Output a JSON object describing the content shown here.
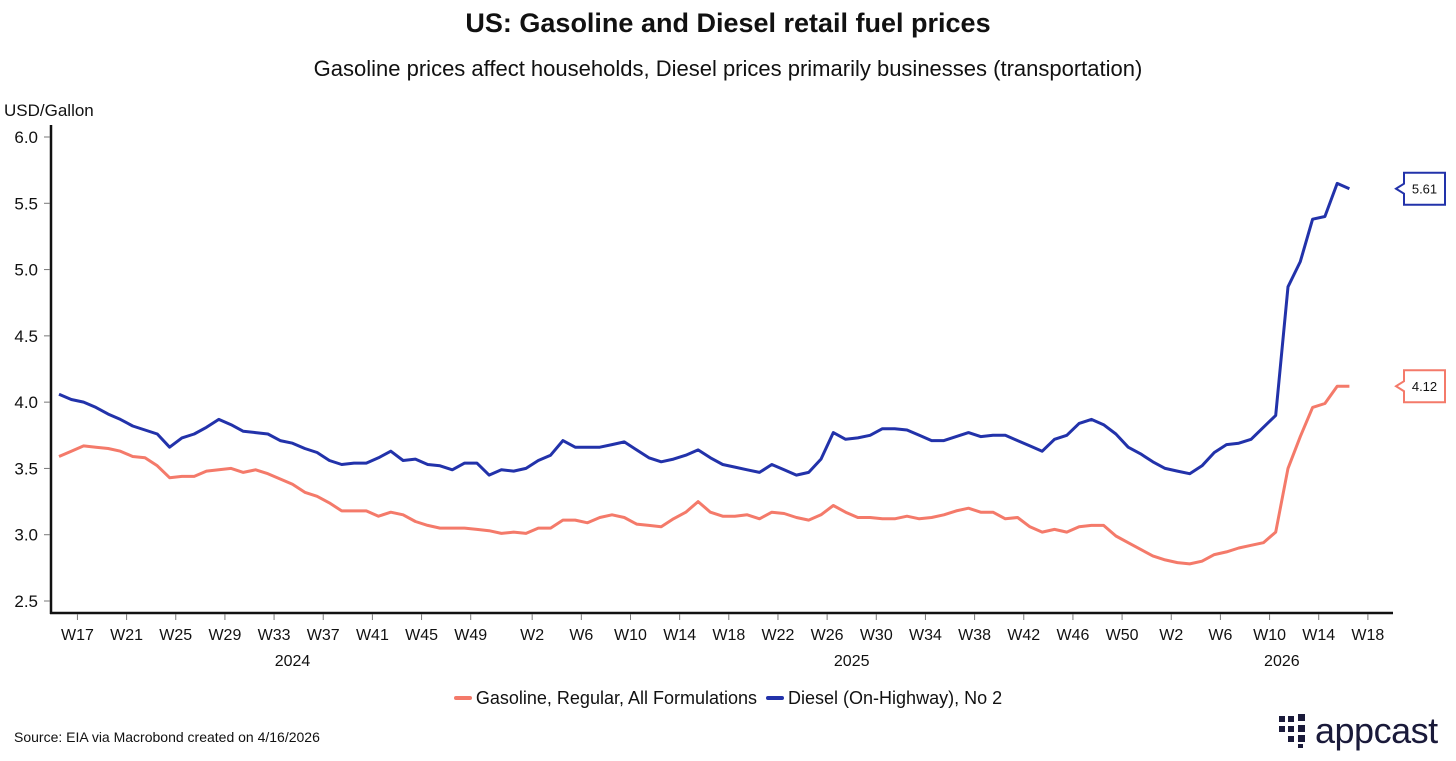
{
  "title": "US: Gasoline and Diesel retail fuel prices",
  "subtitle": "Gasoline prices affect households, Diesel prices primarily businesses (transportation)",
  "source": "Source: EIA via Macrobond created on 4/16/2026",
  "logo_text": "appcast",
  "chart_data": {
    "type": "line",
    "title": "US: Gasoline and Diesel retail fuel prices",
    "ylabel": "USD/Gallon",
    "xlabel": "",
    "ylim": [
      2.5,
      6.0
    ],
    "yticks": [
      "2.5",
      "3.0",
      "3.5",
      "4.0",
      "4.5",
      "5.0",
      "5.5",
      "6.0"
    ],
    "x_unit": "weekly observations, index 0 = first week shown (mid-April 2024)",
    "xticks": [
      {
        "pos": 1.5,
        "label": "W17"
      },
      {
        "pos": 5.5,
        "label": "W21"
      },
      {
        "pos": 9.5,
        "label": "W25"
      },
      {
        "pos": 13.5,
        "label": "W29"
      },
      {
        "pos": 17.5,
        "label": "W33"
      },
      {
        "pos": 21.5,
        "label": "W37"
      },
      {
        "pos": 25.5,
        "label": "W41"
      },
      {
        "pos": 29.5,
        "label": "W45"
      },
      {
        "pos": 33.5,
        "label": "W49"
      },
      {
        "pos": 38.5,
        "label": "W2"
      },
      {
        "pos": 42.5,
        "label": "W6"
      },
      {
        "pos": 46.5,
        "label": "W10"
      },
      {
        "pos": 50.5,
        "label": "W14"
      },
      {
        "pos": 54.5,
        "label": "W18"
      },
      {
        "pos": 58.5,
        "label": "W22"
      },
      {
        "pos": 62.5,
        "label": "W26"
      },
      {
        "pos": 66.5,
        "label": "W30"
      },
      {
        "pos": 70.5,
        "label": "W34"
      },
      {
        "pos": 74.5,
        "label": "W38"
      },
      {
        "pos": 78.5,
        "label": "W42"
      },
      {
        "pos": 82.5,
        "label": "W46"
      },
      {
        "pos": 86.5,
        "label": "W50"
      },
      {
        "pos": 90.5,
        "label": "W2"
      },
      {
        "pos": 94.5,
        "label": "W6"
      },
      {
        "pos": 98.5,
        "label": "W10"
      },
      {
        "pos": 102.5,
        "label": "W14"
      },
      {
        "pos": 106.5,
        "label": "W18"
      }
    ],
    "years": [
      {
        "pos": 19,
        "label": "2024"
      },
      {
        "pos": 64.5,
        "label": "2025"
      },
      {
        "pos": 99.5,
        "label": "2026"
      }
    ],
    "legend_position": "bottom-center",
    "grid": false,
    "series": [
      {
        "name": "Gasoline, Regular, All Formulations",
        "color": "#F47A6A",
        "last_label": "4.12",
        "values": [
          3.59,
          3.63,
          3.67,
          3.66,
          3.65,
          3.63,
          3.59,
          3.58,
          3.52,
          3.43,
          3.44,
          3.44,
          3.48,
          3.49,
          3.5,
          3.47,
          3.49,
          3.46,
          3.42,
          3.38,
          3.32,
          3.29,
          3.24,
          3.18,
          3.18,
          3.18,
          3.14,
          3.17,
          3.15,
          3.1,
          3.07,
          3.05,
          3.05,
          3.05,
          3.04,
          3.03,
          3.01,
          3.02,
          3.01,
          3.05,
          3.05,
          3.11,
          3.11,
          3.09,
          3.13,
          3.15,
          3.13,
          3.08,
          3.07,
          3.06,
          3.12,
          3.17,
          3.25,
          3.17,
          3.14,
          3.14,
          3.15,
          3.12,
          3.17,
          3.16,
          3.13,
          3.11,
          3.15,
          3.22,
          3.17,
          3.13,
          3.13,
          3.12,
          3.12,
          3.14,
          3.12,
          3.13,
          3.15,
          3.18,
          3.2,
          3.17,
          3.17,
          3.12,
          3.13,
          3.06,
          3.02,
          3.04,
          3.02,
          3.06,
          3.07,
          3.07,
          2.99,
          2.94,
          2.89,
          2.84,
          2.81,
          2.79,
          2.78,
          2.8,
          2.85,
          2.87,
          2.9,
          2.92,
          2.94,
          3.02,
          3.5,
          3.74,
          3.96,
          3.99,
          4.12,
          4.12
        ]
      },
      {
        "name": "Diesel (On-Highway), No 2",
        "color": "#2232AA",
        "last_label": "5.61",
        "values": [
          4.06,
          4.02,
          4.0,
          3.96,
          3.91,
          3.87,
          3.82,
          3.79,
          3.76,
          3.66,
          3.73,
          3.76,
          3.81,
          3.87,
          3.83,
          3.78,
          3.77,
          3.76,
          3.71,
          3.69,
          3.65,
          3.62,
          3.56,
          3.53,
          3.54,
          3.54,
          3.58,
          3.63,
          3.56,
          3.57,
          3.53,
          3.52,
          3.49,
          3.54,
          3.54,
          3.45,
          3.49,
          3.48,
          3.5,
          3.56,
          3.6,
          3.71,
          3.66,
          3.66,
          3.66,
          3.68,
          3.7,
          3.64,
          3.58,
          3.55,
          3.57,
          3.6,
          3.64,
          3.58,
          3.53,
          3.51,
          3.49,
          3.47,
          3.53,
          3.49,
          3.45,
          3.47,
          3.57,
          3.77,
          3.72,
          3.73,
          3.75,
          3.8,
          3.8,
          3.79,
          3.75,
          3.71,
          3.71,
          3.74,
          3.77,
          3.74,
          3.75,
          3.75,
          3.71,
          3.67,
          3.63,
          3.72,
          3.75,
          3.84,
          3.87,
          3.83,
          3.76,
          3.66,
          3.61,
          3.55,
          3.5,
          3.48,
          3.46,
          3.52,
          3.62,
          3.68,
          3.69,
          3.72,
          3.81,
          3.9,
          4.87,
          5.06,
          5.38,
          5.4,
          5.65,
          5.61
        ]
      }
    ]
  }
}
